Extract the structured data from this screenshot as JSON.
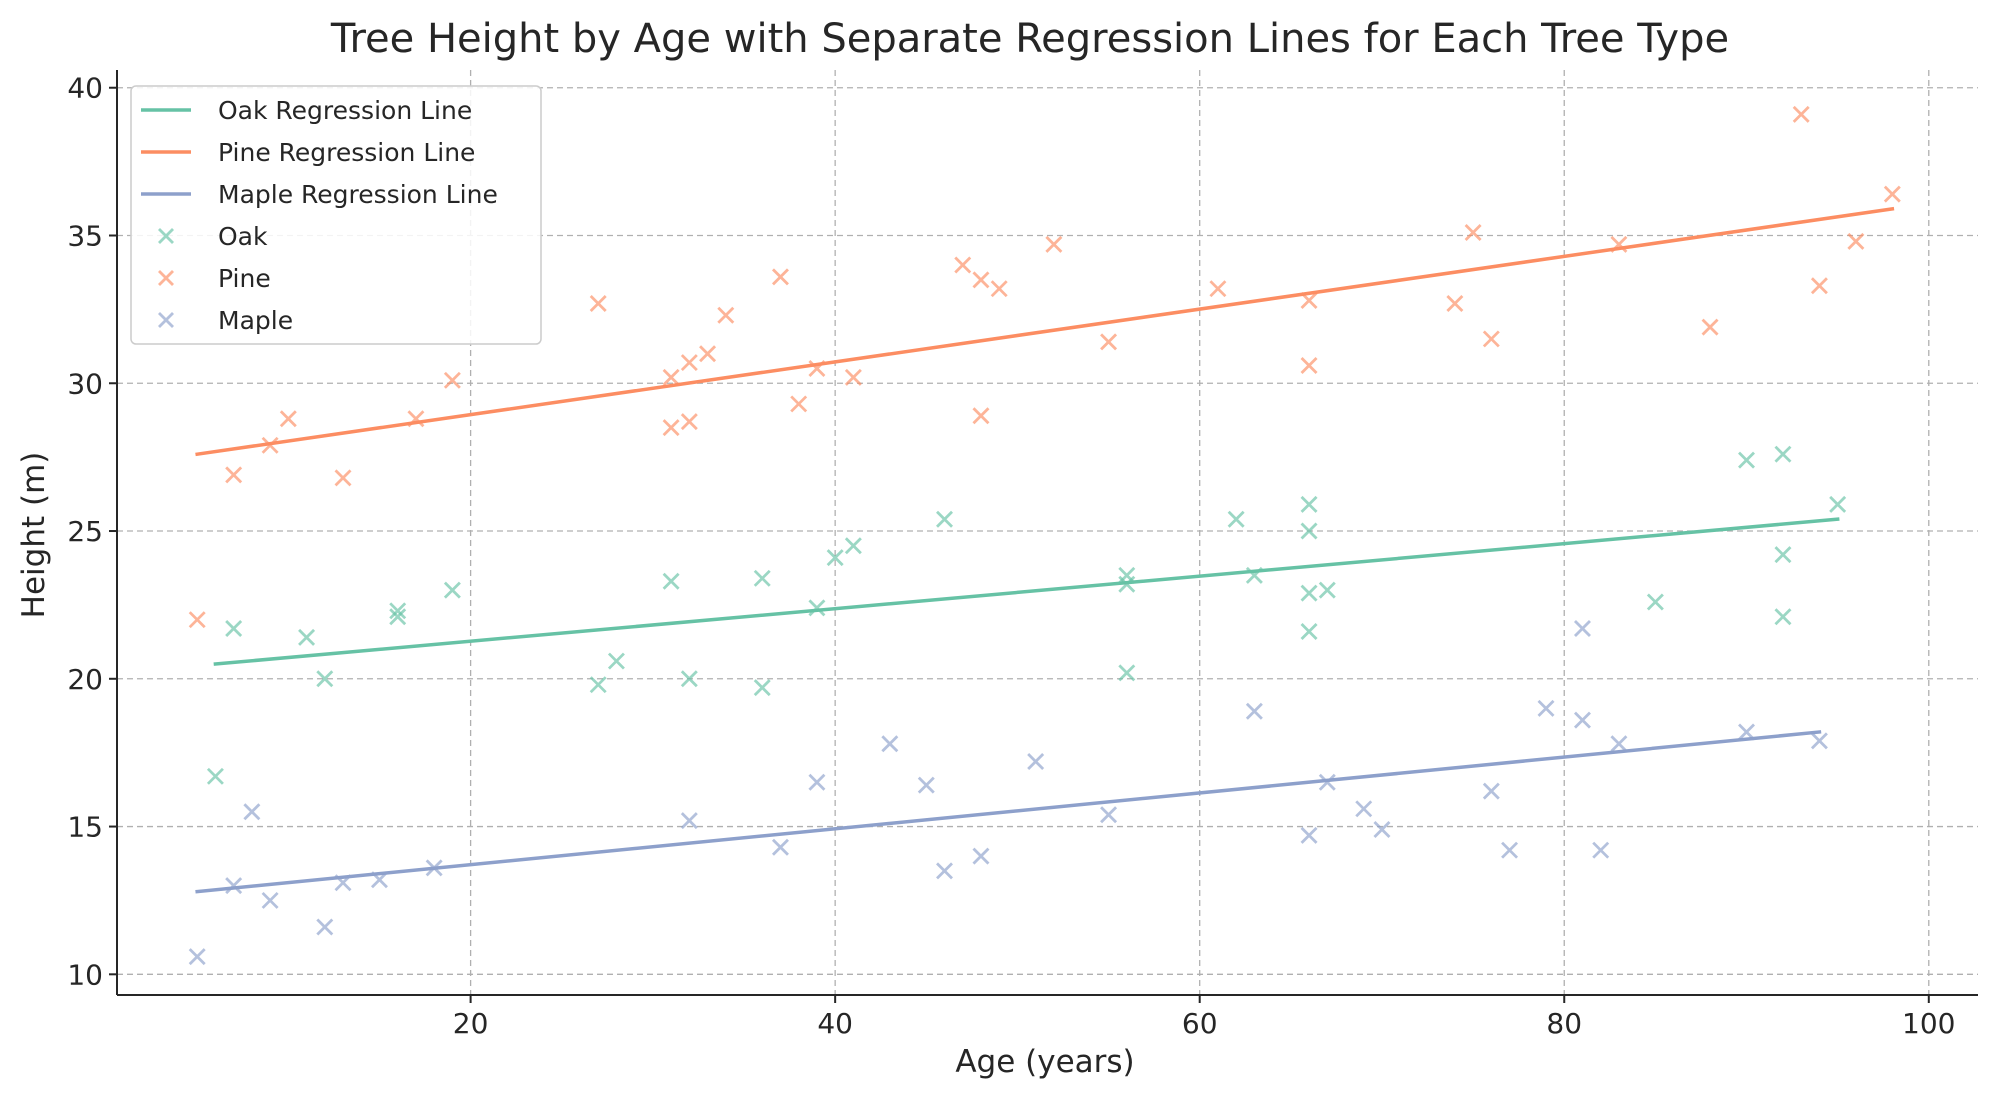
{
  "chart_data": {
    "type": "scatter",
    "title": "Tree Height by Age with Separate Regression Lines for Each Tree Type",
    "xlabel": "Age (years)",
    "ylabel": "Height (m)",
    "xlim": [
      0.6,
      102.7
    ],
    "ylim": [
      9.3,
      40.6
    ],
    "xticks": [
      20,
      40,
      60,
      80,
      100
    ],
    "yticks": [
      10,
      15,
      20,
      25,
      30,
      35,
      40
    ],
    "grid": true,
    "legend_position": "top-left",
    "legend": [
      "Oak Regression Line",
      "Pine Regression Line",
      "Maple Regression Line",
      "Oak",
      "Pine",
      "Maple"
    ],
    "series": [
      {
        "name": "Oak",
        "color": "#66c2a5",
        "marker": "x",
        "points": [
          [
            6,
            16.7
          ],
          [
            7,
            21.7
          ],
          [
            11,
            21.4
          ],
          [
            12,
            20.0
          ],
          [
            16,
            22.3
          ],
          [
            16,
            22.1
          ],
          [
            19,
            23.0
          ],
          [
            27,
            19.8
          ],
          [
            28,
            20.6
          ],
          [
            31,
            23.3
          ],
          [
            32,
            20.0
          ],
          [
            36,
            23.4
          ],
          [
            36,
            19.7
          ],
          [
            39,
            22.4
          ],
          [
            40,
            24.1
          ],
          [
            41,
            24.5
          ],
          [
            46,
            25.4
          ],
          [
            56,
            23.5
          ],
          [
            56,
            23.2
          ],
          [
            56,
            20.2
          ],
          [
            62,
            25.4
          ],
          [
            63,
            23.5
          ],
          [
            66,
            25.9
          ],
          [
            66,
            25.0
          ],
          [
            66,
            22.9
          ],
          [
            67,
            23.0
          ],
          [
            66,
            21.6
          ],
          [
            85,
            22.6
          ],
          [
            90,
            27.4
          ],
          [
            92,
            27.6
          ],
          [
            92,
            24.2
          ],
          [
            92,
            22.1
          ],
          [
            95,
            25.9
          ]
        ]
      },
      {
        "name": "Pine",
        "color": "#fc8d62",
        "marker": "x",
        "points": [
          [
            5,
            22.0
          ],
          [
            7,
            26.9
          ],
          [
            9,
            27.9
          ],
          [
            10,
            28.8
          ],
          [
            13,
            26.8
          ],
          [
            17,
            28.8
          ],
          [
            19,
            30.1
          ],
          [
            27,
            32.7
          ],
          [
            31,
            30.2
          ],
          [
            31,
            28.5
          ],
          [
            32,
            30.7
          ],
          [
            32,
            28.7
          ],
          [
            33,
            31.0
          ],
          [
            34,
            32.3
          ],
          [
            37,
            33.6
          ],
          [
            38,
            29.3
          ],
          [
            39,
            30.5
          ],
          [
            41,
            30.2
          ],
          [
            47,
            34.0
          ],
          [
            48,
            33.5
          ],
          [
            48,
            28.9
          ],
          [
            49,
            33.2
          ],
          [
            52,
            34.7
          ],
          [
            55,
            31.4
          ],
          [
            61,
            33.2
          ],
          [
            66,
            32.8
          ],
          [
            66,
            30.6
          ],
          [
            74,
            32.7
          ],
          [
            75,
            35.1
          ],
          [
            76,
            31.5
          ],
          [
            83,
            34.7
          ],
          [
            88,
            31.9
          ],
          [
            93,
            39.1
          ],
          [
            94,
            33.3
          ],
          [
            96,
            34.8
          ],
          [
            98,
            36.4
          ]
        ]
      },
      {
        "name": "Maple",
        "color": "#8da0cb",
        "marker": "x",
        "points": [
          [
            5,
            10.6
          ],
          [
            7,
            13.0
          ],
          [
            8,
            15.5
          ],
          [
            9,
            12.5
          ],
          [
            12,
            11.6
          ],
          [
            13,
            13.1
          ],
          [
            15,
            13.2
          ],
          [
            18,
            13.6
          ],
          [
            32,
            15.2
          ],
          [
            37,
            14.3
          ],
          [
            39,
            16.5
          ],
          [
            43,
            17.8
          ],
          [
            45,
            16.4
          ],
          [
            46,
            13.5
          ],
          [
            48,
            14.0
          ],
          [
            51,
            17.2
          ],
          [
            55,
            15.4
          ],
          [
            63,
            18.9
          ],
          [
            66,
            14.7
          ],
          [
            67,
            16.5
          ],
          [
            69,
            15.6
          ],
          [
            70,
            14.9
          ],
          [
            76,
            16.2
          ],
          [
            77,
            14.2
          ],
          [
            79,
            19.0
          ],
          [
            81,
            21.7
          ],
          [
            81,
            18.6
          ],
          [
            82,
            14.2
          ],
          [
            83,
            17.8
          ],
          [
            90,
            18.2
          ],
          [
            94,
            17.9
          ]
        ]
      }
    ],
    "regression_lines": [
      {
        "name": "Oak Regression Line",
        "color": "#66c2a5",
        "x": [
          6,
          95
        ],
        "y": [
          20.5,
          25.4
        ]
      },
      {
        "name": "Pine Regression Line",
        "color": "#fc8d62",
        "x": [
          5,
          98
        ],
        "y": [
          27.6,
          35.9
        ]
      },
      {
        "name": "Maple Regression Line",
        "color": "#8da0cb",
        "x": [
          5,
          94
        ],
        "y": [
          12.8,
          18.2
        ]
      }
    ]
  }
}
